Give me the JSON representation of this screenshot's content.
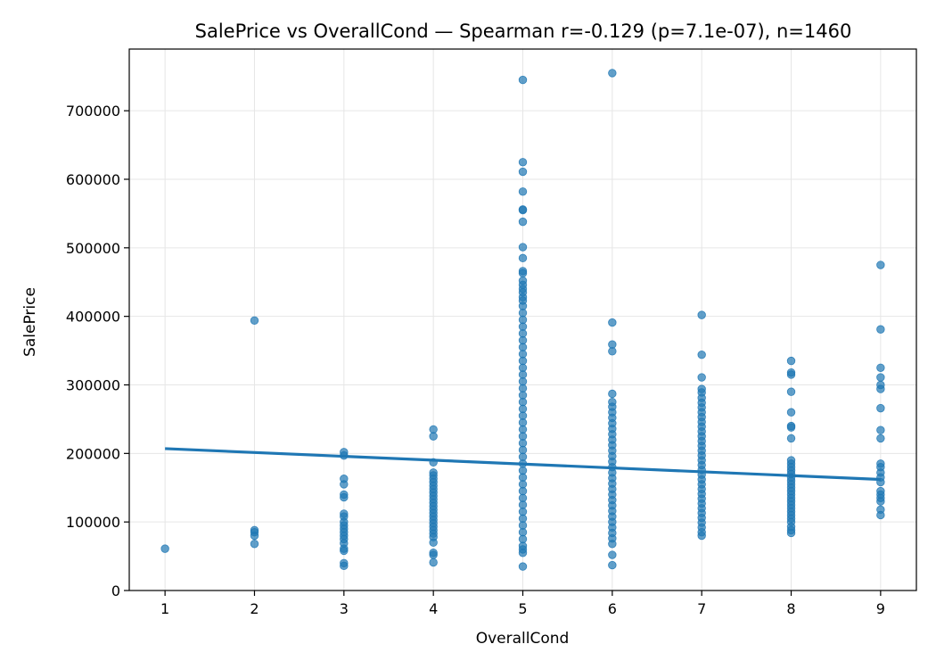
{
  "chart_data": {
    "type": "scatter",
    "title": "SalePrice vs OverallCond — Spearman r=-0.129 (p=7.1e-07), n=1460",
    "xlabel": "OverallCond",
    "ylabel": "SalePrice",
    "xlim": [
      0.6,
      9.4
    ],
    "ylim": [
      0,
      790000
    ],
    "x_ticks": [
      1,
      2,
      3,
      4,
      5,
      6,
      7,
      8,
      9
    ],
    "y_ticks": [
      0,
      100000,
      200000,
      300000,
      400000,
      500000,
      600000,
      700000
    ],
    "grid": true,
    "series": [
      {
        "color": "#1f77b4",
        "points": [
          [
            1,
            61000
          ],
          [
            2,
            394000
          ],
          [
            2,
            88000
          ],
          [
            2,
            85000
          ],
          [
            2,
            80000
          ],
          [
            2,
            68000
          ],
          [
            3,
            202000
          ],
          [
            3,
            197000
          ],
          [
            3,
            163000
          ],
          [
            3,
            155000
          ],
          [
            3,
            140000
          ],
          [
            3,
            136000
          ],
          [
            3,
            112000
          ],
          [
            3,
            108000
          ],
          [
            3,
            100000
          ],
          [
            3,
            95000
          ],
          [
            3,
            90000
          ],
          [
            3,
            85000
          ],
          [
            3,
            80000
          ],
          [
            3,
            75000
          ],
          [
            3,
            69000
          ],
          [
            3,
            61000
          ],
          [
            3,
            58000
          ],
          [
            3,
            40000
          ],
          [
            3,
            36000
          ],
          [
            4,
            235000
          ],
          [
            4,
            225000
          ],
          [
            4,
            187000
          ],
          [
            4,
            172000
          ],
          [
            4,
            168000
          ],
          [
            4,
            163000
          ],
          [
            4,
            158000
          ],
          [
            4,
            153000
          ],
          [
            4,
            148000
          ],
          [
            4,
            143000
          ],
          [
            4,
            138000
          ],
          [
            4,
            133000
          ],
          [
            4,
            128000
          ],
          [
            4,
            123000
          ],
          [
            4,
            118000
          ],
          [
            4,
            113000
          ],
          [
            4,
            108000
          ],
          [
            4,
            103000
          ],
          [
            4,
            98000
          ],
          [
            4,
            93000
          ],
          [
            4,
            88000
          ],
          [
            4,
            83000
          ],
          [
            4,
            78000
          ],
          [
            4,
            70000
          ],
          [
            4,
            55000
          ],
          [
            4,
            52000
          ],
          [
            4,
            41000
          ],
          [
            5,
            745000
          ],
          [
            5,
            625000
          ],
          [
            5,
            611000
          ],
          [
            5,
            582000
          ],
          [
            5,
            556000
          ],
          [
            5,
            555000
          ],
          [
            5,
            538000
          ],
          [
            5,
            501000
          ],
          [
            5,
            485000
          ],
          [
            5,
            466000
          ],
          [
            5,
            463000
          ],
          [
            5,
            452000
          ],
          [
            5,
            446000
          ],
          [
            5,
            440000
          ],
          [
            5,
            435000
          ],
          [
            5,
            428000
          ],
          [
            5,
            423000
          ],
          [
            5,
            415000
          ],
          [
            5,
            405000
          ],
          [
            5,
            395000
          ],
          [
            5,
            385000
          ],
          [
            5,
            375000
          ],
          [
            5,
            365000
          ],
          [
            5,
            355000
          ],
          [
            5,
            345000
          ],
          [
            5,
            335000
          ],
          [
            5,
            325000
          ],
          [
            5,
            315000
          ],
          [
            5,
            305000
          ],
          [
            5,
            295000
          ],
          [
            5,
            285000
          ],
          [
            5,
            275000
          ],
          [
            5,
            265000
          ],
          [
            5,
            255000
          ],
          [
            5,
            245000
          ],
          [
            5,
            235000
          ],
          [
            5,
            225000
          ],
          [
            5,
            215000
          ],
          [
            5,
            205000
          ],
          [
            5,
            195000
          ],
          [
            5,
            185000
          ],
          [
            5,
            175000
          ],
          [
            5,
            165000
          ],
          [
            5,
            155000
          ],
          [
            5,
            145000
          ],
          [
            5,
            135000
          ],
          [
            5,
            125000
          ],
          [
            5,
            115000
          ],
          [
            5,
            105000
          ],
          [
            5,
            95000
          ],
          [
            5,
            85000
          ],
          [
            5,
            75000
          ],
          [
            5,
            65000
          ],
          [
            5,
            60000
          ],
          [
            5,
            55000
          ],
          [
            5,
            35000
          ],
          [
            6,
            755000
          ],
          [
            6,
            391000
          ],
          [
            6,
            359000
          ],
          [
            6,
            349000
          ],
          [
            6,
            287000
          ],
          [
            6,
            275000
          ],
          [
            6,
            268000
          ],
          [
            6,
            260000
          ],
          [
            6,
            252000
          ],
          [
            6,
            244000
          ],
          [
            6,
            236000
          ],
          [
            6,
            228000
          ],
          [
            6,
            220000
          ],
          [
            6,
            212000
          ],
          [
            6,
            204000
          ],
          [
            6,
            196000
          ],
          [
            6,
            188000
          ],
          [
            6,
            180000
          ],
          [
            6,
            172000
          ],
          [
            6,
            164000
          ],
          [
            6,
            156000
          ],
          [
            6,
            148000
          ],
          [
            6,
            140000
          ],
          [
            6,
            132000
          ],
          [
            6,
            124000
          ],
          [
            6,
            116000
          ],
          [
            6,
            108000
          ],
          [
            6,
            100000
          ],
          [
            6,
            92000
          ],
          [
            6,
            84000
          ],
          [
            6,
            76000
          ],
          [
            6,
            68000
          ],
          [
            6,
            52000
          ],
          [
            6,
            37000
          ],
          [
            7,
            402000
          ],
          [
            7,
            344000
          ],
          [
            7,
            311000
          ],
          [
            7,
            294000
          ],
          [
            7,
            289000
          ],
          [
            7,
            281000
          ],
          [
            7,
            274000
          ],
          [
            7,
            267000
          ],
          [
            7,
            260000
          ],
          [
            7,
            253000
          ],
          [
            7,
            246000
          ],
          [
            7,
            239000
          ],
          [
            7,
            232000
          ],
          [
            7,
            225000
          ],
          [
            7,
            218000
          ],
          [
            7,
            211000
          ],
          [
            7,
            204000
          ],
          [
            7,
            197000
          ],
          [
            7,
            190000
          ],
          [
            7,
            183000
          ],
          [
            7,
            176000
          ],
          [
            7,
            169000
          ],
          [
            7,
            162000
          ],
          [
            7,
            155000
          ],
          [
            7,
            148000
          ],
          [
            7,
            141000
          ],
          [
            7,
            134000
          ],
          [
            7,
            127000
          ],
          [
            7,
            120000
          ],
          [
            7,
            113000
          ],
          [
            7,
            106000
          ],
          [
            7,
            99000
          ],
          [
            7,
            92000
          ],
          [
            7,
            85000
          ],
          [
            7,
            80000
          ],
          [
            8,
            335000
          ],
          [
            8,
            318000
          ],
          [
            8,
            315000
          ],
          [
            8,
            290000
          ],
          [
            8,
            260000
          ],
          [
            8,
            240000
          ],
          [
            8,
            238000
          ],
          [
            8,
            222000
          ],
          [
            8,
            190000
          ],
          [
            8,
            185000
          ],
          [
            8,
            180000
          ],
          [
            8,
            175000
          ],
          [
            8,
            170000
          ],
          [
            8,
            165000
          ],
          [
            8,
            160000
          ],
          [
            8,
            155000
          ],
          [
            8,
            150000
          ],
          [
            8,
            145000
          ],
          [
            8,
            140000
          ],
          [
            8,
            135000
          ],
          [
            8,
            130000
          ],
          [
            8,
            125000
          ],
          [
            8,
            120000
          ],
          [
            8,
            115000
          ],
          [
            8,
            110000
          ],
          [
            8,
            105000
          ],
          [
            8,
            100000
          ],
          [
            8,
            93000
          ],
          [
            8,
            88000
          ],
          [
            8,
            84000
          ],
          [
            9,
            475000
          ],
          [
            9,
            381000
          ],
          [
            9,
            325000
          ],
          [
            9,
            311000
          ],
          [
            9,
            300000
          ],
          [
            9,
            294000
          ],
          [
            9,
            266000
          ],
          [
            9,
            234000
          ],
          [
            9,
            222000
          ],
          [
            9,
            185000
          ],
          [
            9,
            180000
          ],
          [
            9,
            172000
          ],
          [
            9,
            165000
          ],
          [
            9,
            158000
          ],
          [
            9,
            145000
          ],
          [
            9,
            140000
          ],
          [
            9,
            135000
          ],
          [
            9,
            130000
          ],
          [
            9,
            118000
          ],
          [
            9,
            110000
          ]
        ]
      }
    ],
    "trendline": {
      "x": [
        1,
        9
      ],
      "y": [
        207000,
        162000
      ],
      "color": "#1f77b4"
    }
  }
}
